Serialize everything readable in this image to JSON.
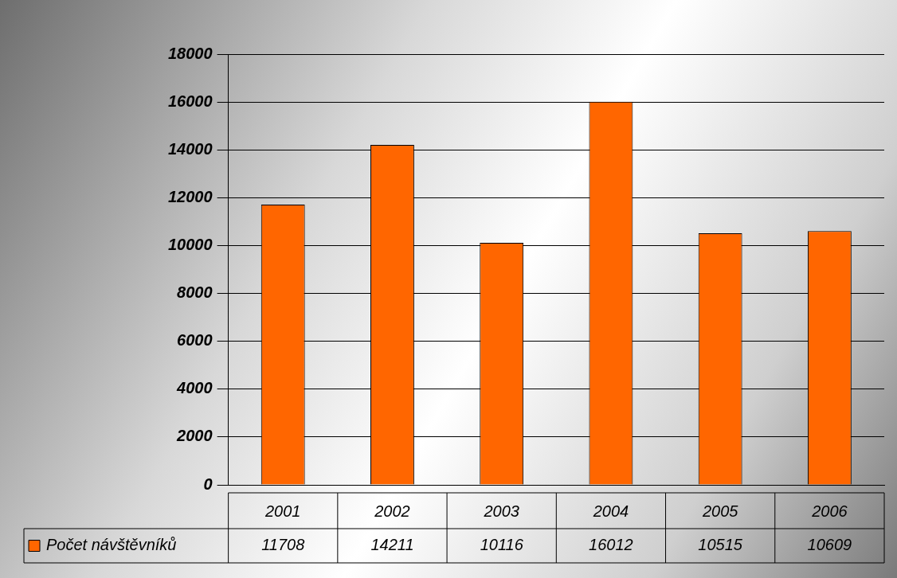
{
  "chart_data": {
    "type": "bar",
    "categories": [
      "2001",
      "2002",
      "2003",
      "2004",
      "2005",
      "2006"
    ],
    "series": [
      {
        "name": "Počet návštěvníků",
        "color": "#ff6600",
        "values": [
          11708,
          14211,
          10116,
          16012,
          10515,
          10609
        ]
      }
    ],
    "ylim": [
      0,
      18000
    ],
    "yticks": [
      0,
      2000,
      4000,
      6000,
      8000,
      10000,
      12000,
      14000,
      16000,
      18000
    ],
    "grid": "y",
    "legend": "bottom",
    "data_labels": true
  }
}
